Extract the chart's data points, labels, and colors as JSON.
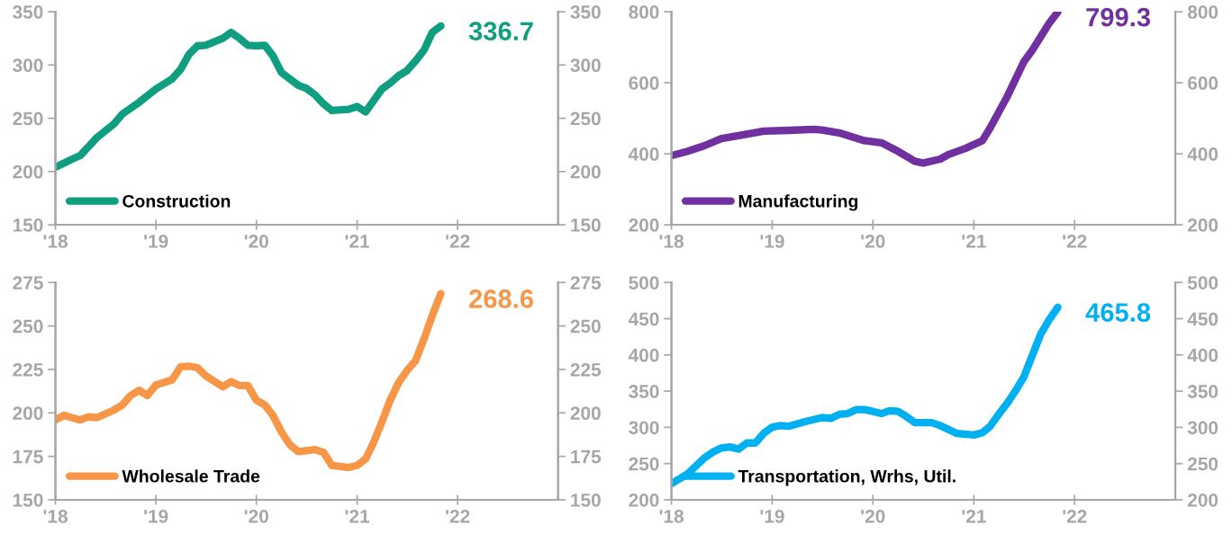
{
  "chart_data": [
    {
      "type": "line",
      "xlim": [
        "2018-01",
        "2023-01"
      ],
      "xticks": [
        {
          "value": "2018-01",
          "label": "'18"
        },
        {
          "value": "2019-01",
          "label": "'19"
        },
        {
          "value": "2020-01",
          "label": "'20"
        },
        {
          "value": "2021-01",
          "label": "'21"
        },
        {
          "value": "2022-01",
          "label": "'22"
        }
      ],
      "ylim": [
        150,
        350
      ],
      "yticks": [
        150,
        200,
        250,
        300,
        350
      ],
      "y2lim": [
        150,
        350
      ],
      "y2ticks": [
        150,
        200,
        250,
        300,
        350
      ],
      "grid": false,
      "legend": "bottom left",
      "marker": "none",
      "line_style": "solid",
      "x": [
        "2018-01",
        "2018-03",
        "2018-04",
        "2018-06",
        "2018-08",
        "2018-09",
        "2018-11",
        "2019-01",
        "2019-03",
        "2019-04",
        "2019-05",
        "2019-06",
        "2019-07",
        "2019-09",
        "2019-10",
        "2019-11",
        "2019-12",
        "2020-01",
        "2020-02",
        "2020-03",
        "2020-04",
        "2020-06",
        "2020-07",
        "2020-08",
        "2020-09",
        "2020-10",
        "2020-12",
        "2021-01",
        "2021-02",
        "2021-04",
        "2021-05",
        "2021-06",
        "2021-07",
        "2021-08",
        "2021-09",
        "2021-10",
        "2021-11"
      ],
      "series": [
        {
          "name": "Construction",
          "color": "#0f9e80",
          "values": [
            204,
            211.5,
            215,
            232,
            244.5,
            254,
            265,
            277.5,
            287,
            296,
            310,
            318,
            318.5,
            325,
            330.6,
            325,
            318.5,
            318,
            318.5,
            308.6,
            292.9,
            281,
            278,
            272,
            263.5,
            257.3,
            258.4,
            261,
            256,
            277.5,
            283,
            290,
            294.7,
            303.8,
            314,
            330.6,
            336.7
          ]
        }
      ],
      "annotations": [
        {
          "text": "336.7",
          "x": "2021-11",
          "y": 336.7
        }
      ]
    },
    {
      "type": "line",
      "xlim": [
        "2018-01",
        "2023-01"
      ],
      "xticks": [
        {
          "value": "2018-01",
          "label": "'18"
        },
        {
          "value": "2019-01",
          "label": "'19"
        },
        {
          "value": "2020-01",
          "label": "'20"
        },
        {
          "value": "2021-01",
          "label": "'21"
        },
        {
          "value": "2022-01",
          "label": "'22"
        }
      ],
      "ylim": [
        200,
        800
      ],
      "yticks": [
        200,
        400,
        600,
        800
      ],
      "y2lim": [
        200,
        800
      ],
      "y2ticks": [
        200,
        400,
        600,
        800
      ],
      "grid": false,
      "legend": "bottom left",
      "marker": "none",
      "line_style": "solid",
      "x": [
        "2018-01",
        "2018-03",
        "2018-05",
        "2018-07",
        "2018-09",
        "2018-12",
        "2019-03",
        "2019-06",
        "2019-07",
        "2019-09",
        "2019-12",
        "2020-02",
        "2020-04",
        "2020-06",
        "2020-07",
        "2020-09",
        "2020-10",
        "2020-12",
        "2021-02",
        "2021-03",
        "2021-05",
        "2021-07",
        "2021-08",
        "2021-10",
        "2021-11"
      ],
      "series": [
        {
          "name": "Manufacturing",
          "color": "#7030a0",
          "values": [
            395,
            407,
            423,
            443,
            451,
            464,
            466,
            469,
            467,
            459,
            437,
            431,
            407,
            379,
            374,
            385,
            398,
            415,
            437,
            473,
            560,
            659,
            692,
            768,
            799.3
          ]
        }
      ],
      "annotations": [
        {
          "text": "799.3",
          "x": "2021-11",
          "y": 799.3
        }
      ]
    },
    {
      "type": "line",
      "xlim": [
        "2018-01",
        "2023-01"
      ],
      "xticks": [
        {
          "value": "2018-01",
          "label": "'18"
        },
        {
          "value": "2019-01",
          "label": "'19"
        },
        {
          "value": "2020-01",
          "label": "'20"
        },
        {
          "value": "2021-01",
          "label": "'21"
        },
        {
          "value": "2022-01",
          "label": "'22"
        }
      ],
      "ylim": [
        150,
        275
      ],
      "yticks": [
        150,
        175,
        200,
        225,
        250,
        275
      ],
      "y2lim": [
        150,
        275
      ],
      "y2ticks": [
        150,
        175,
        200,
        225,
        250,
        275
      ],
      "grid": false,
      "legend": "bottom left",
      "marker": "none",
      "line_style": "solid",
      "x": [
        "2018-01",
        "2018-02",
        "2018-04",
        "2018-05",
        "2018-06",
        "2018-08",
        "2018-09",
        "2018-10",
        "2018-11",
        "2018-12",
        "2019-01",
        "2019-03",
        "2019-04",
        "2019-05",
        "2019-06",
        "2019-07",
        "2019-09",
        "2019-10",
        "2019-11",
        "2019-12",
        "2020-01",
        "2020-02",
        "2020-03",
        "2020-04",
        "2020-05",
        "2020-06",
        "2020-08",
        "2020-09",
        "2020-10",
        "2020-12",
        "2021-01",
        "2021-02",
        "2021-03",
        "2021-04",
        "2021-05",
        "2021-06",
        "2021-07",
        "2021-08",
        "2021-09",
        "2021-10",
        "2021-11"
      ],
      "series": [
        {
          "name": "Wholesale Trade",
          "color": "#f79646",
          "values": [
            195.9,
            198.6,
            195.9,
            197.7,
            197.3,
            201.6,
            204.5,
            210,
            213,
            210,
            216,
            219,
            226.6,
            226.8,
            226,
            221.4,
            215,
            218,
            215.7,
            215.7,
            207.3,
            204.5,
            198.6,
            189,
            181.8,
            177.7,
            178.9,
            177.3,
            169.8,
            168.6,
            169.8,
            173.6,
            182.7,
            194.8,
            207.3,
            217.5,
            224.3,
            230,
            242.5,
            256,
            268.6
          ]
        }
      ],
      "annotations": [
        {
          "text": "268.6",
          "x": "2021-11",
          "y": 268.6
        }
      ]
    },
    {
      "type": "line",
      "xlim": [
        "2018-01",
        "2023-01"
      ],
      "xticks": [
        {
          "value": "2018-01",
          "label": "'18"
        },
        {
          "value": "2019-01",
          "label": "'19"
        },
        {
          "value": "2020-01",
          "label": "'20"
        },
        {
          "value": "2021-01",
          "label": "'21"
        },
        {
          "value": "2022-01",
          "label": "'22"
        }
      ],
      "ylim": [
        200,
        500
      ],
      "yticks": [
        200,
        250,
        300,
        350,
        400,
        450,
        500
      ],
      "y2lim": [
        200,
        500
      ],
      "y2ticks": [
        200,
        250,
        300,
        350,
        400,
        450,
        500
      ],
      "grid": false,
      "legend": "bottom left",
      "marker": "none",
      "line_style": "solid",
      "x": [
        "2018-01",
        "2018-03",
        "2018-05",
        "2018-06",
        "2018-07",
        "2018-08",
        "2018-09",
        "2018-10",
        "2018-11",
        "2018-12",
        "2019-01",
        "2019-02",
        "2019-03",
        "2019-05",
        "2019-07",
        "2019-08",
        "2019-09",
        "2019-10",
        "2019-11",
        "2019-12",
        "2020-01",
        "2020-02",
        "2020-03",
        "2020-04",
        "2020-05",
        "2020-06",
        "2020-08",
        "2020-09",
        "2020-10",
        "2020-11",
        "2021-01",
        "2021-02",
        "2021-03",
        "2021-04",
        "2021-05",
        "2021-06",
        "2021-07",
        "2021-08",
        "2021-09",
        "2021-10",
        "2021-11"
      ],
      "series": [
        {
          "name": "Transportation, Wrhs, Util.",
          "color": "#00b0f0",
          "values": [
            222.4,
            236,
            258,
            266,
            271.6,
            273,
            270,
            278.5,
            278.5,
            291.6,
            300.4,
            302.5,
            301.5,
            308,
            313.5,
            312.4,
            318,
            319,
            324.5,
            324.5,
            322,
            319,
            323,
            322,
            315,
            306.5,
            306.5,
            302.5,
            297,
            291.6,
            289.5,
            292.7,
            301.5,
            318,
            333,
            350.5,
            369.6,
            399.6,
            429.5,
            448.7,
            465.8
          ]
        }
      ],
      "annotations": [
        {
          "text": "465.8",
          "x": "2021-11",
          "y": 465.8
        }
      ]
    }
  ]
}
